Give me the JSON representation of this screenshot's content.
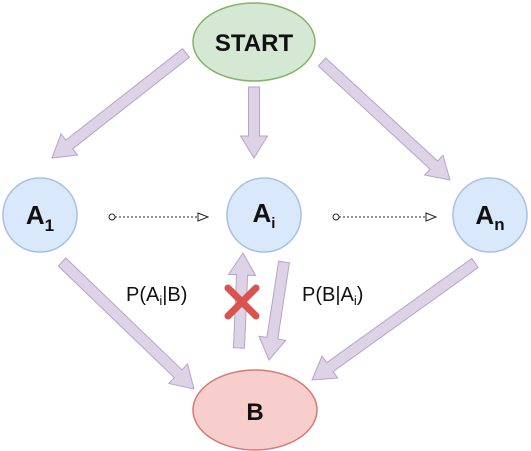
{
  "diagram": {
    "nodes": {
      "start": {
        "label": "START"
      },
      "a1": {
        "base": "A",
        "sub": "1"
      },
      "ai": {
        "base": "A",
        "sub": "i"
      },
      "an": {
        "base": "A",
        "sub": "n"
      },
      "b": {
        "label": "B"
      }
    },
    "edge_labels": {
      "p_ai_given_b": {
        "pre": "P(A",
        "sub": "i",
        "post": "|B)"
      },
      "p_b_given_ai": {
        "pre": "P(B|A",
        "sub": "i",
        "post": ")"
      }
    },
    "colors": {
      "start_fill": "#d5e8d4",
      "start_stroke": "#82b366",
      "a_fill": "#dae8fc",
      "a_stroke": "#a8c0e6",
      "b_fill": "#f8cecc",
      "b_stroke": "#d27a76",
      "arrow_fill": "#ddd2e6",
      "arrow_stroke": "#b7a4c6",
      "cross": "#d9534f"
    }
  }
}
